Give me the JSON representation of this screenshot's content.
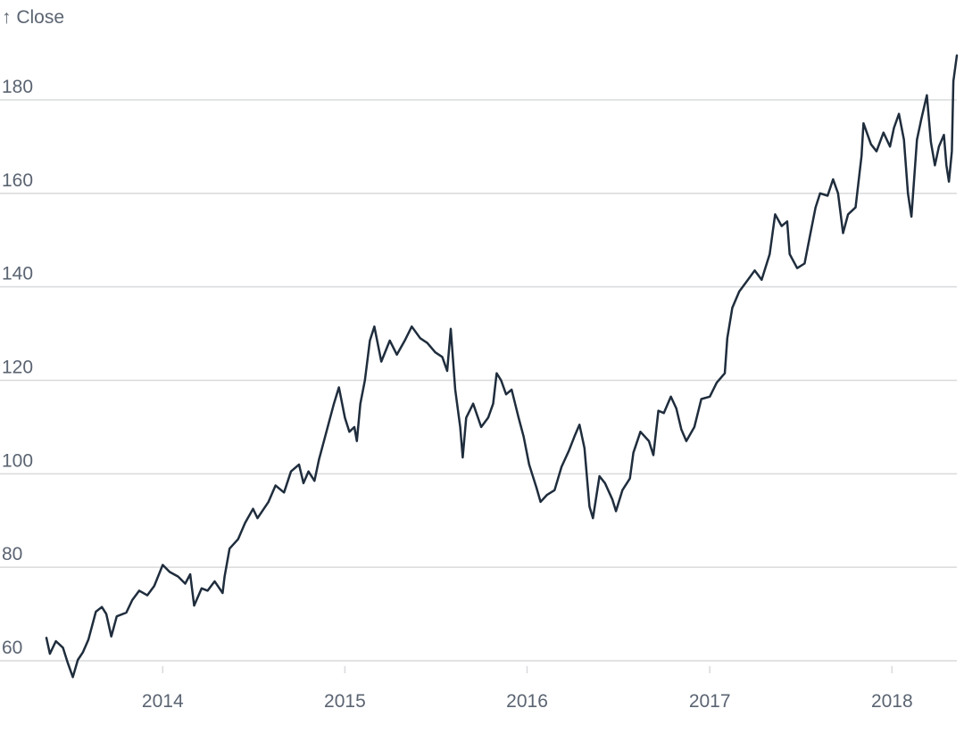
{
  "chart_data": {
    "type": "line",
    "ylabel": "↑ Close",
    "xlabel": "",
    "title": "",
    "grid": true,
    "line_color": "#1f2d3d",
    "ylim": [
      55,
      192
    ],
    "xlim": [
      "2013-05-13",
      "2018-05-11"
    ],
    "y_ticks": [
      60,
      80,
      100,
      120,
      140,
      160,
      180
    ],
    "x_ticks": [
      {
        "date": "2014-01-01",
        "label": "2014"
      },
      {
        "date": "2015-01-01",
        "label": "2015"
      },
      {
        "date": "2016-01-01",
        "label": "2016"
      },
      {
        "date": "2017-01-01",
        "label": "2017"
      },
      {
        "date": "2018-01-01",
        "label": "2018"
      }
    ],
    "series": [
      {
        "name": "",
        "points": [
          [
            "2013-05-13",
            64.9
          ],
          [
            "2013-05-20",
            61.5
          ],
          [
            "2013-06-01",
            64.2
          ],
          [
            "2013-06-15",
            62.8
          ],
          [
            "2013-06-25",
            59.5
          ],
          [
            "2013-07-05",
            56.5
          ],
          [
            "2013-07-15",
            60.2
          ],
          [
            "2013-07-25",
            61.8
          ],
          [
            "2013-08-05",
            64.5
          ],
          [
            "2013-08-20",
            70.5
          ],
          [
            "2013-09-01",
            71.5
          ],
          [
            "2013-09-10",
            70.0
          ],
          [
            "2013-09-20",
            65.2
          ],
          [
            "2013-10-01",
            69.5
          ],
          [
            "2013-10-20",
            70.3
          ],
          [
            "2013-11-01",
            73.0
          ],
          [
            "2013-11-15",
            75.0
          ],
          [
            "2013-12-01",
            74.0
          ],
          [
            "2013-12-15",
            76.0
          ],
          [
            "2014-01-01",
            80.5
          ],
          [
            "2014-01-15",
            79.0
          ],
          [
            "2014-02-01",
            78.0
          ],
          [
            "2014-02-15",
            76.5
          ],
          [
            "2014-02-25",
            78.5
          ],
          [
            "2014-03-05",
            71.8
          ],
          [
            "2014-03-20",
            75.5
          ],
          [
            "2014-04-01",
            75.0
          ],
          [
            "2014-04-15",
            77.0
          ],
          [
            "2014-05-01",
            74.5
          ],
          [
            "2014-05-05",
            78.0
          ],
          [
            "2014-05-15",
            84.0
          ],
          [
            "2014-06-01",
            86.0
          ],
          [
            "2014-06-15",
            89.5
          ],
          [
            "2014-07-01",
            92.5
          ],
          [
            "2014-07-10",
            90.5
          ],
          [
            "2014-08-01",
            94.0
          ],
          [
            "2014-08-15",
            97.5
          ],
          [
            "2014-09-01",
            96.0
          ],
          [
            "2014-09-15",
            100.5
          ],
          [
            "2014-10-01",
            102.0
          ],
          [
            "2014-10-10",
            98.0
          ],
          [
            "2014-10-20",
            100.5
          ],
          [
            "2014-11-01",
            98.5
          ],
          [
            "2014-11-10",
            103.0
          ],
          [
            "2014-11-25",
            109.0
          ],
          [
            "2014-12-10",
            115.0
          ],
          [
            "2014-12-20",
            118.5
          ],
          [
            "2015-01-01",
            112.0
          ],
          [
            "2015-01-10",
            109.0
          ],
          [
            "2015-01-20",
            110.0
          ],
          [
            "2015-01-25",
            107.0
          ],
          [
            "2015-02-01",
            115.0
          ],
          [
            "2015-02-10",
            120.0
          ],
          [
            "2015-02-20",
            128.5
          ],
          [
            "2015-03-01",
            131.5
          ],
          [
            "2015-03-15",
            124.0
          ],
          [
            "2015-04-01",
            128.5
          ],
          [
            "2015-04-15",
            125.5
          ],
          [
            "2015-05-01",
            128.5
          ],
          [
            "2015-05-15",
            131.5
          ],
          [
            "2015-06-01",
            129.0
          ],
          [
            "2015-06-15",
            128.0
          ],
          [
            "2015-07-01",
            126.0
          ],
          [
            "2015-07-15",
            125.0
          ],
          [
            "2015-07-25",
            122.0
          ],
          [
            "2015-08-01",
            131.0
          ],
          [
            "2015-08-10",
            118.0
          ],
          [
            "2015-08-20",
            110.0
          ],
          [
            "2015-08-25",
            103.5
          ],
          [
            "2015-09-01",
            112.0
          ],
          [
            "2015-09-15",
            115.0
          ],
          [
            "2015-10-01",
            110.0
          ],
          [
            "2015-10-15",
            112.0
          ],
          [
            "2015-10-25",
            115.0
          ],
          [
            "2015-11-01",
            121.5
          ],
          [
            "2015-11-10",
            120.0
          ],
          [
            "2015-11-20",
            117.0
          ],
          [
            "2015-12-01",
            118.0
          ],
          [
            "2015-12-15",
            112.0
          ],
          [
            "2015-12-25",
            108.0
          ],
          [
            "2016-01-05",
            102.0
          ],
          [
            "2016-01-20",
            97.0
          ],
          [
            "2016-01-28",
            94.0
          ],
          [
            "2016-02-10",
            95.5
          ],
          [
            "2016-02-25",
            96.5
          ],
          [
            "2016-03-10",
            101.5
          ],
          [
            "2016-03-25",
            105.0
          ],
          [
            "2016-04-05",
            108.0
          ],
          [
            "2016-04-15",
            110.5
          ],
          [
            "2016-04-25",
            105.5
          ],
          [
            "2016-05-05",
            93.0
          ],
          [
            "2016-05-12",
            90.5
          ],
          [
            "2016-05-25",
            99.5
          ],
          [
            "2016-06-05",
            98.0
          ],
          [
            "2016-06-20",
            94.5
          ],
          [
            "2016-06-27",
            92.0
          ],
          [
            "2016-07-10",
            96.5
          ],
          [
            "2016-07-25",
            99.0
          ],
          [
            "2016-08-01",
            104.5
          ],
          [
            "2016-08-15",
            109.0
          ],
          [
            "2016-09-01",
            107.0
          ],
          [
            "2016-09-10",
            104.0
          ],
          [
            "2016-09-20",
            113.5
          ],
          [
            "2016-10-01",
            113.0
          ],
          [
            "2016-10-15",
            116.5
          ],
          [
            "2016-10-26",
            114.0
          ],
          [
            "2016-11-05",
            109.5
          ],
          [
            "2016-11-15",
            107.0
          ],
          [
            "2016-12-01",
            110.0
          ],
          [
            "2016-12-15",
            116.0
          ],
          [
            "2017-01-01",
            116.5
          ],
          [
            "2017-01-15",
            119.5
          ],
          [
            "2017-01-31",
            121.5
          ],
          [
            "2017-02-05",
            129.0
          ],
          [
            "2017-02-15",
            135.5
          ],
          [
            "2017-03-01",
            139.0
          ],
          [
            "2017-03-15",
            141.0
          ],
          [
            "2017-04-01",
            143.5
          ],
          [
            "2017-04-15",
            141.5
          ],
          [
            "2017-05-01",
            147.0
          ],
          [
            "2017-05-12",
            155.5
          ],
          [
            "2017-05-25",
            153.0
          ],
          [
            "2017-06-05",
            154.0
          ],
          [
            "2017-06-10",
            147.0
          ],
          [
            "2017-06-25",
            144.0
          ],
          [
            "2017-07-10",
            145.0
          ],
          [
            "2017-07-20",
            150.5
          ],
          [
            "2017-08-01",
            157.0
          ],
          [
            "2017-08-10",
            160.0
          ],
          [
            "2017-08-25",
            159.5
          ],
          [
            "2017-09-05",
            163.0
          ],
          [
            "2017-09-15",
            160.0
          ],
          [
            "2017-09-25",
            151.5
          ],
          [
            "2017-10-05",
            155.5
          ],
          [
            "2017-10-20",
            157.0
          ],
          [
            "2017-11-01",
            168.0
          ],
          [
            "2017-11-05",
            175.0
          ],
          [
            "2017-11-20",
            170.5
          ],
          [
            "2017-12-01",
            169.0
          ],
          [
            "2017-12-15",
            173.0
          ],
          [
            "2017-12-28",
            170.0
          ],
          [
            "2018-01-05",
            174.0
          ],
          [
            "2018-01-15",
            177.0
          ],
          [
            "2018-01-25",
            171.5
          ],
          [
            "2018-02-02",
            160.0
          ],
          [
            "2018-02-09",
            155.0
          ],
          [
            "2018-02-20",
            171.5
          ],
          [
            "2018-03-01",
            176.0
          ],
          [
            "2018-03-12",
            181.0
          ],
          [
            "2018-03-20",
            171.0
          ],
          [
            "2018-03-28",
            166.0
          ],
          [
            "2018-04-05",
            170.0
          ],
          [
            "2018-04-15",
            172.5
          ],
          [
            "2018-04-20",
            166.0
          ],
          [
            "2018-04-25",
            162.5
          ],
          [
            "2018-05-01",
            169.0
          ],
          [
            "2018-05-04",
            184.0
          ],
          [
            "2018-05-11",
            189.5
          ]
        ]
      }
    ]
  }
}
